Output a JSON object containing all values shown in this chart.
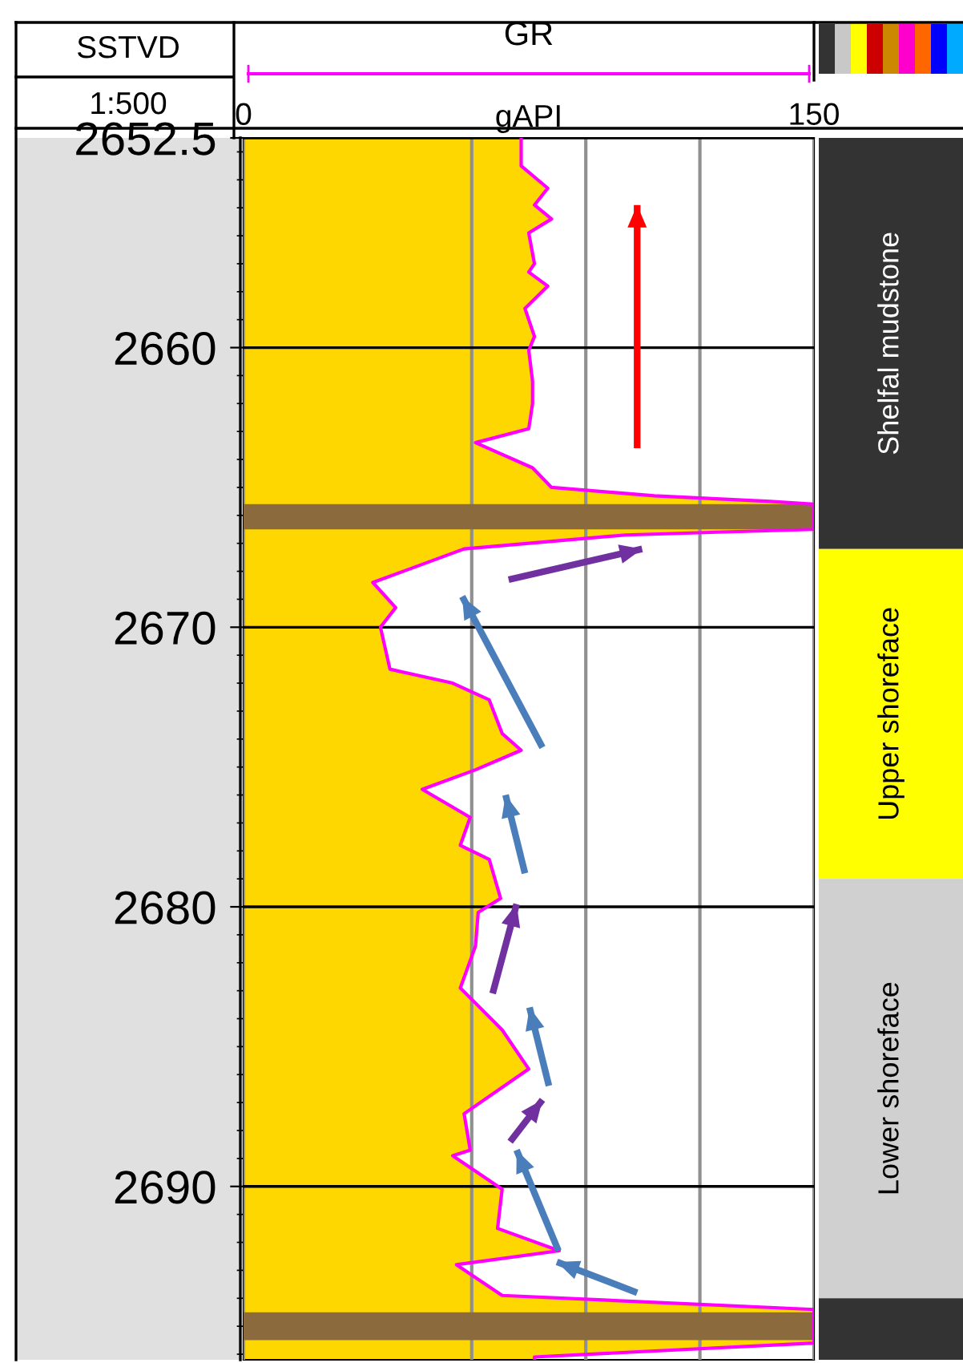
{
  "chart_data": [
    {
      "type": "area",
      "orientation": "horizontal",
      "title": "GR",
      "xlabel": "gAPI",
      "ylabel": "SSTVD",
      "annotations": [
        "1:500"
      ],
      "xlim": [
        0,
        150
      ],
      "xticks": [
        0,
        {
          "value": 60,
          "label": null
        },
        {
          "value": 90,
          "label": null
        },
        {
          "value": 120,
          "label": null
        },
        150
      ],
      "ylim": [
        2696.2,
        2652.5
      ],
      "yticks": [
        2652.5,
        2660,
        2670,
        2680,
        2690
      ],
      "grid": true,
      "series": [
        {
          "type": "area",
          "color": "#ffd700",
          "x": [
            2652.4,
            2653.5,
            2654.3,
            2654.9,
            2655.4,
            2655.9,
            2657.0,
            2657.3,
            2657.8,
            2658.6,
            2659.6,
            2660.1,
            2661.2,
            2662.0,
            2662.9,
            2663.4,
            2664.3,
            2665.0,
            2665.3,
            2665.5,
            2665.6,
            2666.5,
            2666.6,
            2666.7,
            2667.2,
            2668.4,
            2669.3,
            2670.0,
            2671.5,
            2672.0,
            2672.6,
            2673.8,
            2674.4,
            2675.1,
            2675.8,
            2676.8,
            2677.8,
            2678.3,
            2679.7,
            2680.2,
            2681.4,
            2682.9,
            2684.4,
            2685.8,
            2687.4,
            2688.7,
            2688.9,
            2690.1,
            2691.5,
            2692.3,
            2692.8,
            2693.9,
            2694.4,
            2695.6,
            2696.1,
            2696.2
          ],
          "values": [
            73,
            73,
            80,
            76.5,
            81,
            75,
            76.5,
            75,
            80,
            74,
            76.5,
            75,
            76,
            76,
            75,
            61,
            76,
            81,
            108,
            138.5,
            150,
            150,
            124.6,
            100.5,
            58,
            34,
            40,
            36,
            38.5,
            55,
            64.6,
            68,
            73,
            61,
            47,
            59.6,
            57,
            64.6,
            67.6,
            61.7,
            61,
            57,
            68,
            75,
            58,
            59.6,
            55,
            68,
            66.8,
            83,
            56,
            68,
            150,
            150,
            76.5,
            76.5
          ]
        },
        {
          "type": "line",
          "color": "#ff00ff",
          "x": [
            2652.4,
            2653.5,
            2654.3,
            2654.9,
            2655.4,
            2655.9,
            2657.0,
            2657.3,
            2657.8,
            2658.6,
            2659.6,
            2660.1,
            2661.2,
            2662.0,
            2662.9,
            2663.4,
            2664.3,
            2665.0,
            2665.3,
            2665.5,
            2665.6,
            2666.5,
            2666.6,
            2666.7,
            2667.2,
            2668.4,
            2669.3,
            2670.0,
            2671.5,
            2672.0,
            2672.6,
            2673.8,
            2674.4,
            2675.1,
            2675.8,
            2676.8,
            2677.8,
            2678.3,
            2679.7,
            2680.2,
            2681.4,
            2682.9,
            2684.4,
            2685.8,
            2687.4,
            2688.7,
            2688.9,
            2690.1,
            2691.5,
            2692.3,
            2692.8,
            2693.9,
            2694.4,
            2695.6,
            2696.1,
            2696.2
          ],
          "values": [
            73,
            73,
            80,
            76.5,
            81,
            75,
            76.5,
            75,
            80,
            74,
            76.5,
            75,
            76,
            76,
            75,
            61,
            76,
            81,
            108,
            138.5,
            150,
            150,
            124.6,
            100.5,
            58,
            34,
            40,
            36,
            38.5,
            55,
            64.6,
            68,
            73,
            61,
            47,
            59.6,
            57,
            64.6,
            67.6,
            61.7,
            61,
            57,
            68,
            75,
            58,
            59.6,
            55,
            68,
            66.8,
            83,
            56,
            68,
            150,
            150,
            76.5,
            76.5
          ]
        },
        {
          "type": "line",
          "color": "#ff0000",
          "x": [
            2663.6,
            2654.9
          ],
          "values": [
            103.5,
            103.5
          ]
        },
        {
          "type": "line",
          "color": "#7030a0",
          "x": [
            2668.3,
            2667.2
          ],
          "values": [
            69.7,
            104.8
          ]
        },
        {
          "type": "line",
          "color": "#4a7ebb",
          "x": [
            2674.3,
            2668.9
          ],
          "values": [
            78.6,
            57.5
          ]
        },
        {
          "type": "line",
          "color": "#4a7ebb",
          "x": [
            2678.8,
            2676.0
          ],
          "values": [
            74,
            68.9
          ]
        },
        {
          "type": "line",
          "color": "#7030a0",
          "x": [
            2683.1,
            2679.9
          ],
          "values": [
            65.5,
            71.8
          ]
        },
        {
          "type": "line",
          "color": "#4a7ebb",
          "x": [
            2686.4,
            2683.6
          ],
          "values": [
            80.3,
            75.2
          ]
        },
        {
          "type": "line",
          "color": "#7030a0",
          "x": [
            2688.4,
            2686.9
          ],
          "values": [
            70.1,
            78.6
          ]
        },
        {
          "type": "line",
          "color": "#4a7ebb",
          "x": [
            2692.3,
            2688.7
          ],
          "values": [
            82.8,
            71.8
          ]
        },
        {
          "type": "line",
          "color": "#4a7ebb",
          "x": [
            2693.8,
            2692.7
          ],
          "values": [
            103.5,
            82.4
          ]
        }
      ],
      "bands": [
        {
          "axis": "y",
          "from": 2665.6,
          "to": 2666.5,
          "color": "#8b6b3d"
        },
        {
          "axis": "y",
          "from": 2694.5,
          "to": 2695.5,
          "color": "#8b6b3d"
        }
      ]
    },
    {
      "type": "bar",
      "categories": [
        null
      ],
      "ylim": [
        2696.2,
        2652.5
      ],
      "tick_labels": false,
      "series": [
        {
          "name": "Shelfal mudstone",
          "color": "#333333",
          "base": [
            2652.5
          ],
          "values": [
            14.7
          ]
        },
        {
          "name": "Upper shoreface",
          "color": "#ffff00",
          "base": [
            2667.2
          ],
          "values": [
            11.8
          ]
        },
        {
          "name": "Lower shoreface",
          "color": "#d0d0d0",
          "base": [
            2679.0
          ],
          "values": [
            15.0
          ]
        },
        {
          "color": "#333333",
          "base": [
            2694.0
          ],
          "values": [
            2.2
          ]
        }
      ]
    }
  ]
}
